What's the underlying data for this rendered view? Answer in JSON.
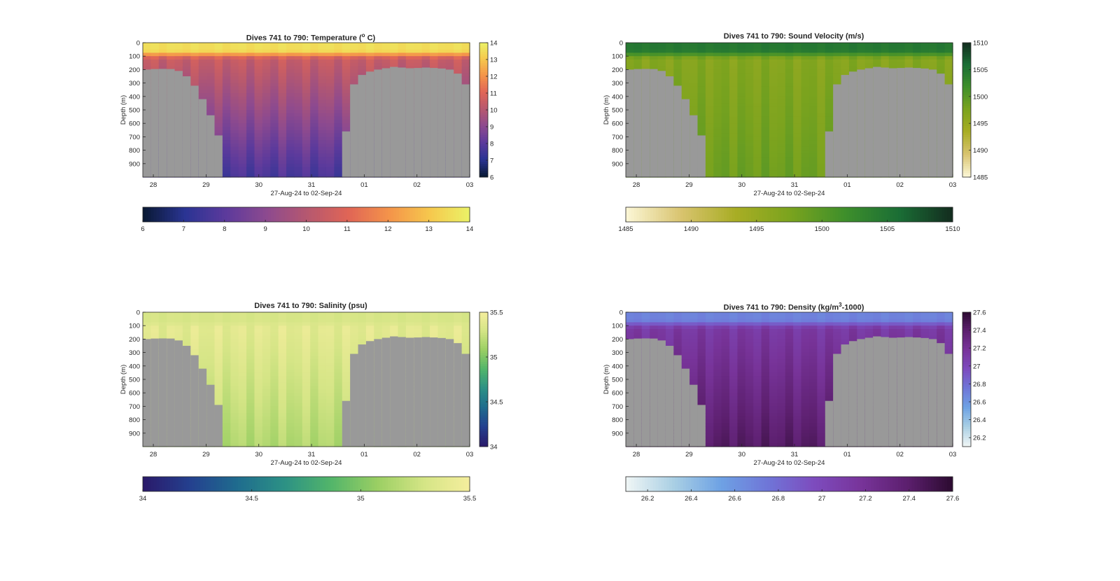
{
  "chart_data": [
    {
      "type": "heatmap",
      "title": "Dives 741 to 790: Temperature (",
      "title_sup": "o",
      "title_end": " C)",
      "xlabel": "27-Aug-24 to 02-Sep-24",
      "ylabel": "Depth (m)",
      "x_ticks": [
        "28",
        "29",
        "30",
        "31",
        "01",
        "02",
        "03"
      ],
      "y_ticks": [
        "0",
        "100",
        "200",
        "300",
        "400",
        "500",
        "600",
        "700",
        "800",
        "900"
      ],
      "ylim": [
        0,
        1000
      ],
      "colorbar_ticks": [
        "6",
        "7",
        "8",
        "9",
        "10",
        "11",
        "12",
        "13",
        "14"
      ],
      "clim": [
        6,
        14
      ],
      "hbar_ticks": [
        "6",
        "7",
        "8",
        "9",
        "10",
        "11",
        "12",
        "13",
        "14"
      ],
      "colormap": [
        "#0a1a36",
        "#2a3493",
        "#5c3a9c",
        "#8d4a8f",
        "#b6586f",
        "#e06556",
        "#f4944a",
        "#f6c84d",
        "#eaf468"
      ],
      "surface_value": 13.5,
      "mid_value": 10.4,
      "deep_value": 7.6,
      "bathymetry_color": "#999999",
      "seafloor_depth_m": [
        200,
        196,
        195,
        196,
        210,
        250,
        320,
        420,
        540,
        690,
        1000,
        1000,
        1000,
        1000,
        1000,
        1000,
        1000,
        1000,
        1000,
        1000,
        1000,
        1000,
        1000,
        1000,
        1000,
        660,
        310,
        240,
        215,
        200,
        190,
        180,
        185,
        190,
        188,
        185,
        188,
        192,
        200,
        230,
        310
      ]
    },
    {
      "type": "heatmap",
      "title": "Dives 741 to 790: Sound Velocity (m/s)",
      "xlabel": "27-Aug-24 to 02-Sep-24",
      "ylabel": "Depth (m)",
      "x_ticks": [
        "28",
        "29",
        "30",
        "31",
        "01",
        "02",
        "03"
      ],
      "y_ticks": [
        "0",
        "100",
        "200",
        "300",
        "400",
        "500",
        "600",
        "700",
        "800",
        "900"
      ],
      "ylim": [
        0,
        1000
      ],
      "colorbar_ticks": [
        "1485",
        "1490",
        "1495",
        "1500",
        "1505",
        "1510"
      ],
      "clim": [
        1485,
        1510
      ],
      "hbar_ticks": [
        "1485",
        "1490",
        "1495",
        "1500",
        "1505",
        "1510"
      ],
      "colormap": [
        "#fbf6d4",
        "#d8c36e",
        "#a8ad24",
        "#7aa31e",
        "#3e8f2b",
        "#1a6d35",
        "#132a1e"
      ],
      "surface_value": 1504.5,
      "mid_value": 1496.5,
      "deep_value": 1498.5,
      "bathymetry_color": "#999999",
      "seafloor_depth_m": [
        200,
        196,
        195,
        196,
        210,
        250,
        320,
        420,
        540,
        690,
        1000,
        1000,
        1000,
        1000,
        1000,
        1000,
        1000,
        1000,
        1000,
        1000,
        1000,
        1000,
        1000,
        1000,
        1000,
        660,
        310,
        240,
        215,
        200,
        190,
        180,
        185,
        190,
        188,
        185,
        188,
        192,
        200,
        230,
        310
      ]
    },
    {
      "type": "heatmap",
      "title": "Dives 741 to 790: Salinity (psu)",
      "xlabel": "27-Aug-24 to 02-Sep-24",
      "ylabel": "Depth (m)",
      "x_ticks": [
        "28",
        "29",
        "30",
        "31",
        "01",
        "02",
        "03"
      ],
      "y_ticks": [
        "0",
        "100",
        "200",
        "300",
        "400",
        "500",
        "600",
        "700",
        "800",
        "900"
      ],
      "ylim": [
        0,
        1000
      ],
      "colorbar_ticks": [
        "34",
        "34.5",
        "35",
        "35.5"
      ],
      "clim": [
        34,
        35.5
      ],
      "hbar_ticks": [
        "34",
        "34.5",
        "35",
        "35.5"
      ],
      "colormap": [
        "#2a1a6b",
        "#24418f",
        "#1f6c8e",
        "#2c9185",
        "#52b56a",
        "#9bcf63",
        "#d5e586",
        "#f6ee9e"
      ],
      "surface_value": 35.3,
      "mid_value": 35.38,
      "deep_value": 35.15,
      "bathymetry_color": "#999999",
      "seafloor_depth_m": [
        200,
        196,
        195,
        196,
        210,
        250,
        320,
        420,
        540,
        690,
        1000,
        1000,
        1000,
        1000,
        1000,
        1000,
        1000,
        1000,
        1000,
        1000,
        1000,
        1000,
        1000,
        1000,
        1000,
        660,
        310,
        240,
        215,
        200,
        190,
        180,
        185,
        190,
        188,
        185,
        188,
        192,
        200,
        230,
        310
      ]
    },
    {
      "type": "heatmap",
      "title": "Dives 741 to 790: Density (kg/m",
      "title_sup": "3",
      "title_end": "-1000)",
      "xlabel": "27-Aug-24 to 02-Sep-24",
      "ylabel": "Depth (m)",
      "x_ticks": [
        "28",
        "29",
        "30",
        "31",
        "01",
        "02",
        "03"
      ],
      "y_ticks": [
        "0",
        "100",
        "200",
        "300",
        "400",
        "500",
        "600",
        "700",
        "800",
        "900"
      ],
      "ylim": [
        0,
        1000
      ],
      "colorbar_ticks": [
        "26.2",
        "26.4",
        "26.6",
        "26.8",
        "27",
        "27.2",
        "27.4",
        "27.6"
      ],
      "clim": [
        26.1,
        27.6
      ],
      "hbar_ticks": [
        "26.2",
        "26.4",
        "26.6",
        "26.8",
        "27",
        "27.2",
        "27.4",
        "27.6"
      ],
      "colormap": [
        "#eef5f5",
        "#a9cfe4",
        "#6ea2e4",
        "#6f76d8",
        "#7d4cbe",
        "#78349a",
        "#5c1f6e",
        "#2a0a2e"
      ],
      "surface_value": 26.68,
      "mid_value": 27.12,
      "deep_value": 27.42,
      "bathymetry_color": "#999999",
      "seafloor_depth_m": [
        200,
        196,
        195,
        196,
        210,
        250,
        320,
        420,
        540,
        690,
        1000,
        1000,
        1000,
        1000,
        1000,
        1000,
        1000,
        1000,
        1000,
        1000,
        1000,
        1000,
        1000,
        1000,
        1000,
        660,
        310,
        240,
        215,
        200,
        190,
        180,
        185,
        190,
        188,
        185,
        188,
        192,
        200,
        230,
        310
      ]
    }
  ]
}
